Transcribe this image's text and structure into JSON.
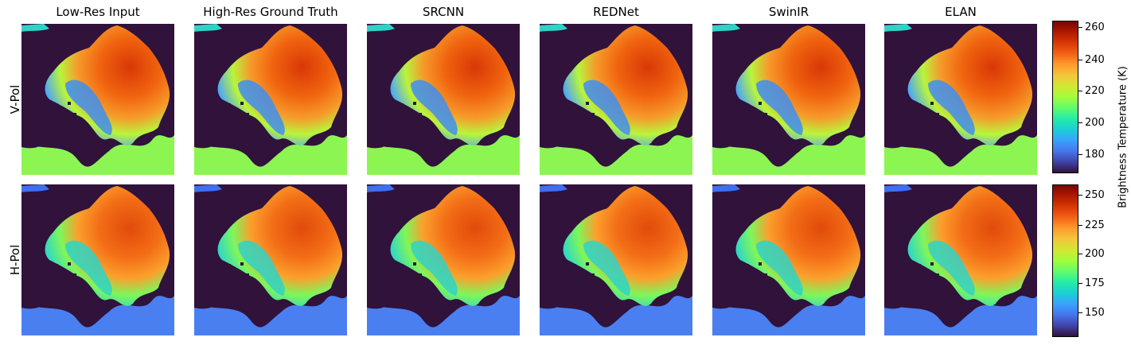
{
  "figure": {
    "columns": [
      "Low-Res Input",
      "High-Res Ground Truth",
      "SRCNN",
      "REDNet",
      "SwinIR",
      "ELAN"
    ],
    "rows": [
      {
        "label": "V-Pol",
        "colorbar": {
          "ticks": [
            "260",
            "240",
            "220",
            "200",
            "180"
          ],
          "min": 167,
          "max": 265
        }
      },
      {
        "label": "H-Pol",
        "colorbar": {
          "ticks": [
            "250",
            "225",
            "200",
            "175",
            "150"
          ],
          "min": 130,
          "max": 257
        }
      }
    ],
    "colorbar_label": "Brightness Temperature (K)",
    "colormap": "turbo",
    "background_color": "#30123b"
  }
}
